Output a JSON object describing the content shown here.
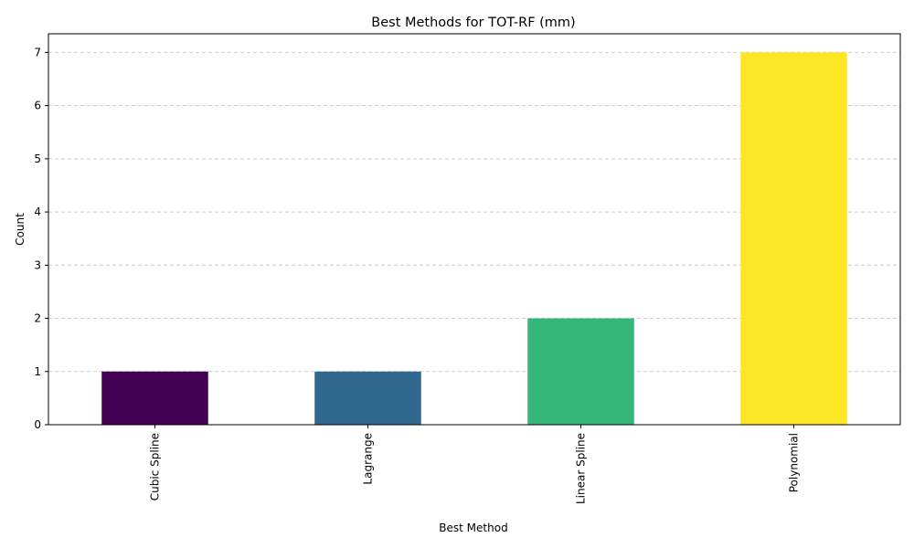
{
  "chart_data": {
    "type": "bar",
    "title": "Best Methods for TOT-RF (mm)",
    "xlabel": "Best Method",
    "ylabel": "Count",
    "categories": [
      "Cubic Spline",
      "Lagrange",
      "Linear Spline",
      "Polynomial"
    ],
    "values": [
      1,
      1,
      2,
      7
    ],
    "colors": [
      "#440154",
      "#31688e",
      "#35b779",
      "#fde725"
    ],
    "ylim": [
      0,
      7.35
    ],
    "yticks": [
      "0",
      "1",
      "2",
      "3",
      "4",
      "5",
      "6",
      "7"
    ],
    "grid": "y-dashed",
    "legend": "none"
  }
}
